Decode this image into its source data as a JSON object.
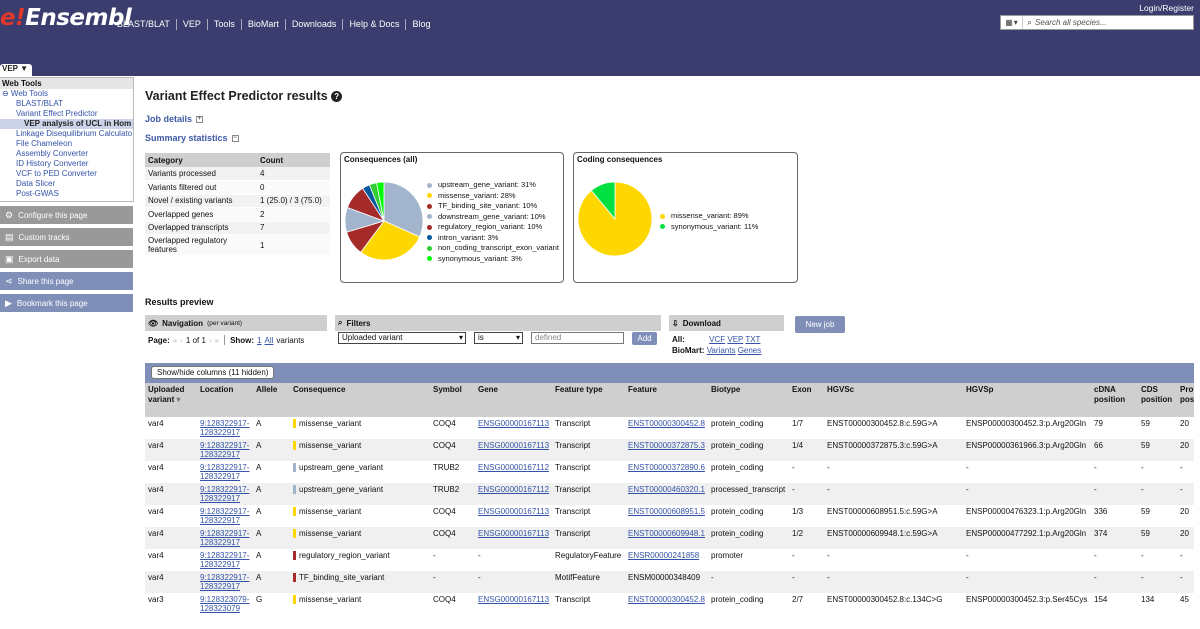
{
  "header": {
    "logo": {
      "e": "e",
      "bang": "!",
      "rest": "Ensembl"
    },
    "nav": [
      "BLAST/BLAT",
      "VEP",
      "Tools",
      "BioMart",
      "Downloads",
      "Help & Docs",
      "Blog"
    ],
    "login": "Login/Register",
    "search_placeholder": "Search all species..."
  },
  "tab": "VEP ▼",
  "sidebar": {
    "title": "Web Tools",
    "items": [
      {
        "label": "⊖ Web Tools"
      },
      {
        "label": "BLAST/BLAT"
      },
      {
        "label": "Variant Effect Predictor"
      },
      {
        "label": "VEP analysis of UCL in Hom"
      },
      {
        "label": "Linkage Disequilibrium Calculato"
      },
      {
        "label": "File Chameleon"
      },
      {
        "label": "Assembly Converter"
      },
      {
        "label": "ID History Converter"
      },
      {
        "label": "VCF to PED Converter"
      },
      {
        "label": "Data Slicer"
      },
      {
        "label": "Post-GWAS"
      }
    ],
    "buttons": [
      "Configure this page",
      "Custom tracks",
      "Export data",
      "Share this page",
      "Bookmark this page"
    ]
  },
  "page_title": "Variant Effect Predictor results",
  "job_details": "Job details",
  "summary_statistics": "Summary statistics",
  "stats": {
    "headers": [
      "Category",
      "Count"
    ],
    "rows": [
      [
        "Variants processed",
        "4"
      ],
      [
        "Variants filtered out",
        "0"
      ],
      [
        "Novel / existing variants",
        "1 (25.0) / 3 (75.0)"
      ],
      [
        "Overlapped genes",
        "2"
      ],
      [
        "Overlapped transcripts",
        "7"
      ],
      [
        "Overlapped regulatory features",
        "1"
      ]
    ]
  },
  "chart_data": [
    {
      "type": "pie",
      "title": "Consequences (all)",
      "labels": [
        "upstream_gene_variant: 31%",
        "missense_variant: 28%",
        "TF_binding_site_variant: 10%",
        "downstream_gene_variant: 10%",
        "regulatory_region_variant: 10%",
        "intron_variant: 3%",
        "non_coding_transcript_exon_variant",
        "synonymous_variant: 3%"
      ],
      "values": [
        31,
        28,
        10,
        10,
        10,
        3,
        3,
        3
      ],
      "colors": [
        "#a2b5cd",
        "#ffd700",
        "#a52a2a",
        "#a2b5cd",
        "#a52a2a",
        "#02599c",
        "#32cd32",
        "#00ff00"
      ]
    },
    {
      "type": "pie",
      "title": "Coding consequences",
      "labels": [
        "missense_variant: 89%",
        "synonymous_variant: 11%"
      ],
      "values": [
        89,
        11
      ],
      "colors": [
        "#ffd700",
        "#00e040"
      ]
    }
  ],
  "results_preview": "Results preview",
  "navigation": {
    "title": "Navigation",
    "subtitle": "(per variant)",
    "page_label": "Page:",
    "page_text": "1 of 1",
    "show_label": "Show:",
    "show_1": "1",
    "show_all": "All",
    "show_suffix": "variants"
  },
  "filters": {
    "title": "Filters",
    "field": "Uploaded variant",
    "op": "is",
    "value_placeholder": "defined",
    "add": "Add"
  },
  "download": {
    "title": "Download",
    "all_label": "All:",
    "vcf": "VCF",
    "vep": "VEP",
    "txt": "TXT",
    "biomart_label": "BioMart:",
    "variants": "Variants",
    "genes": "Genes"
  },
  "new_job": "New job",
  "show_hide": "Show/hide columns (11 hidden)",
  "results": {
    "headers": [
      "Uploaded variant",
      "Location",
      "Allele",
      "Consequence",
      "Symbol",
      "Gene",
      "Feature type",
      "Feature",
      "Biotype",
      "Exon",
      "HGVSc",
      "HGVSp",
      "cDNA position",
      "CDS position",
      "Protein position"
    ],
    "rows": [
      {
        "var": "var4",
        "loc": "9:128322917-128322917",
        "allele": "A",
        "cons": "missense_variant",
        "ccolor": "#ffd700",
        "sym": "COQ4",
        "gene": "ENSG00000167113",
        "ftype": "Transcript",
        "feat": "ENST00000300452.8",
        "biotype": "protein_coding",
        "exon": "1/7",
        "hgvsc": "ENST00000300452.8:c.59G>A",
        "hgvsp": "ENSP00000300452.3:p.Arg20Gln",
        "cdna": "79",
        "cds": "59",
        "prot": "20"
      },
      {
        "var": "var4",
        "loc": "9:128322917-128322917",
        "allele": "A",
        "cons": "missense_variant",
        "ccolor": "#ffd700",
        "sym": "COQ4",
        "gene": "ENSG00000167113",
        "ftype": "Transcript",
        "feat": "ENST00000372875.3",
        "biotype": "protein_coding",
        "exon": "1/4",
        "hgvsc": "ENST00000372875.3:c.59G>A",
        "hgvsp": "ENSP00000361966.3:p.Arg20Gln",
        "cdna": "66",
        "cds": "59",
        "prot": "20"
      },
      {
        "var": "var4",
        "loc": "9:128322917-128322917",
        "allele": "A",
        "cons": "upstream_gene_variant",
        "ccolor": "#a2b5cd",
        "sym": "TRUB2",
        "gene": "ENSG00000167112",
        "ftype": "Transcript",
        "feat": "ENST00000372890.6",
        "biotype": "protein_coding",
        "exon": "-",
        "hgvsc": "-",
        "hgvsp": "-",
        "cdna": "-",
        "cds": "-",
        "prot": "-"
      },
      {
        "var": "var4",
        "loc": "9:128322917-128322917",
        "allele": "A",
        "cons": "upstream_gene_variant",
        "ccolor": "#a2b5cd",
        "sym": "TRUB2",
        "gene": "ENSG00000167112",
        "ftype": "Transcript",
        "feat": "ENST00000460320.1",
        "biotype": "processed_transcript",
        "exon": "-",
        "hgvsc": "-",
        "hgvsp": "-",
        "cdna": "-",
        "cds": "-",
        "prot": "-"
      },
      {
        "var": "var4",
        "loc": "9:128322917-128322917",
        "allele": "A",
        "cons": "missense_variant",
        "ccolor": "#ffd700",
        "sym": "COQ4",
        "gene": "ENSG00000167113",
        "ftype": "Transcript",
        "feat": "ENST00000608951.5",
        "biotype": "protein_coding",
        "exon": "1/3",
        "hgvsc": "ENST00000608951.5:c.59G>A",
        "hgvsp": "ENSP00000476323.1:p.Arg20Gln",
        "cdna": "336",
        "cds": "59",
        "prot": "20"
      },
      {
        "var": "var4",
        "loc": "9:128322917-128322917",
        "allele": "A",
        "cons": "missense_variant",
        "ccolor": "#ffd700",
        "sym": "COQ4",
        "gene": "ENSG00000167113",
        "ftype": "Transcript",
        "feat": "ENST00000609948.1",
        "biotype": "protein_coding",
        "exon": "1/2",
        "hgvsc": "ENST00000609948.1:c.59G>A",
        "hgvsp": "ENSP00000477292.1:p.Arg20Gln",
        "cdna": "374",
        "cds": "59",
        "prot": "20"
      },
      {
        "var": "var4",
        "loc": "9:128322917-128322917",
        "allele": "A",
        "cons": "regulatory_region_variant",
        "ccolor": "#a52a2a",
        "sym": "-",
        "gene": "-",
        "ftype": "RegulatoryFeature",
        "feat": "ENSR00000241858",
        "biotype": "promoter",
        "exon": "-",
        "hgvsc": "-",
        "hgvsp": "-",
        "cdna": "-",
        "cds": "-",
        "prot": "-"
      },
      {
        "var": "var4",
        "loc": "9:128322917-128322917",
        "allele": "A",
        "cons": "TF_binding_site_variant",
        "ccolor": "#a52a2a",
        "sym": "-",
        "gene": "-",
        "ftype": "MotifFeature",
        "feat": "ENSM00000348409",
        "biotype": "-",
        "exon": "-",
        "hgvsc": "-",
        "hgvsp": "-",
        "cdna": "-",
        "cds": "-",
        "prot": "-"
      },
      {
        "var": "var3",
        "loc": "9:128323079-128323079",
        "allele": "G",
        "cons": "missense_variant",
        "ccolor": "#ffd700",
        "sym": "COQ4",
        "gene": "ENSG00000167113",
        "ftype": "Transcript",
        "feat": "ENST00000300452.8",
        "biotype": "protein_coding",
        "exon": "2/7",
        "hgvsc": "ENST00000300452.8:c.134C>G",
        "hgvsp": "ENSP00000300452.3:p.Ser45Cys",
        "cdna": "154",
        "cds": "134",
        "prot": "45"
      }
    ]
  }
}
